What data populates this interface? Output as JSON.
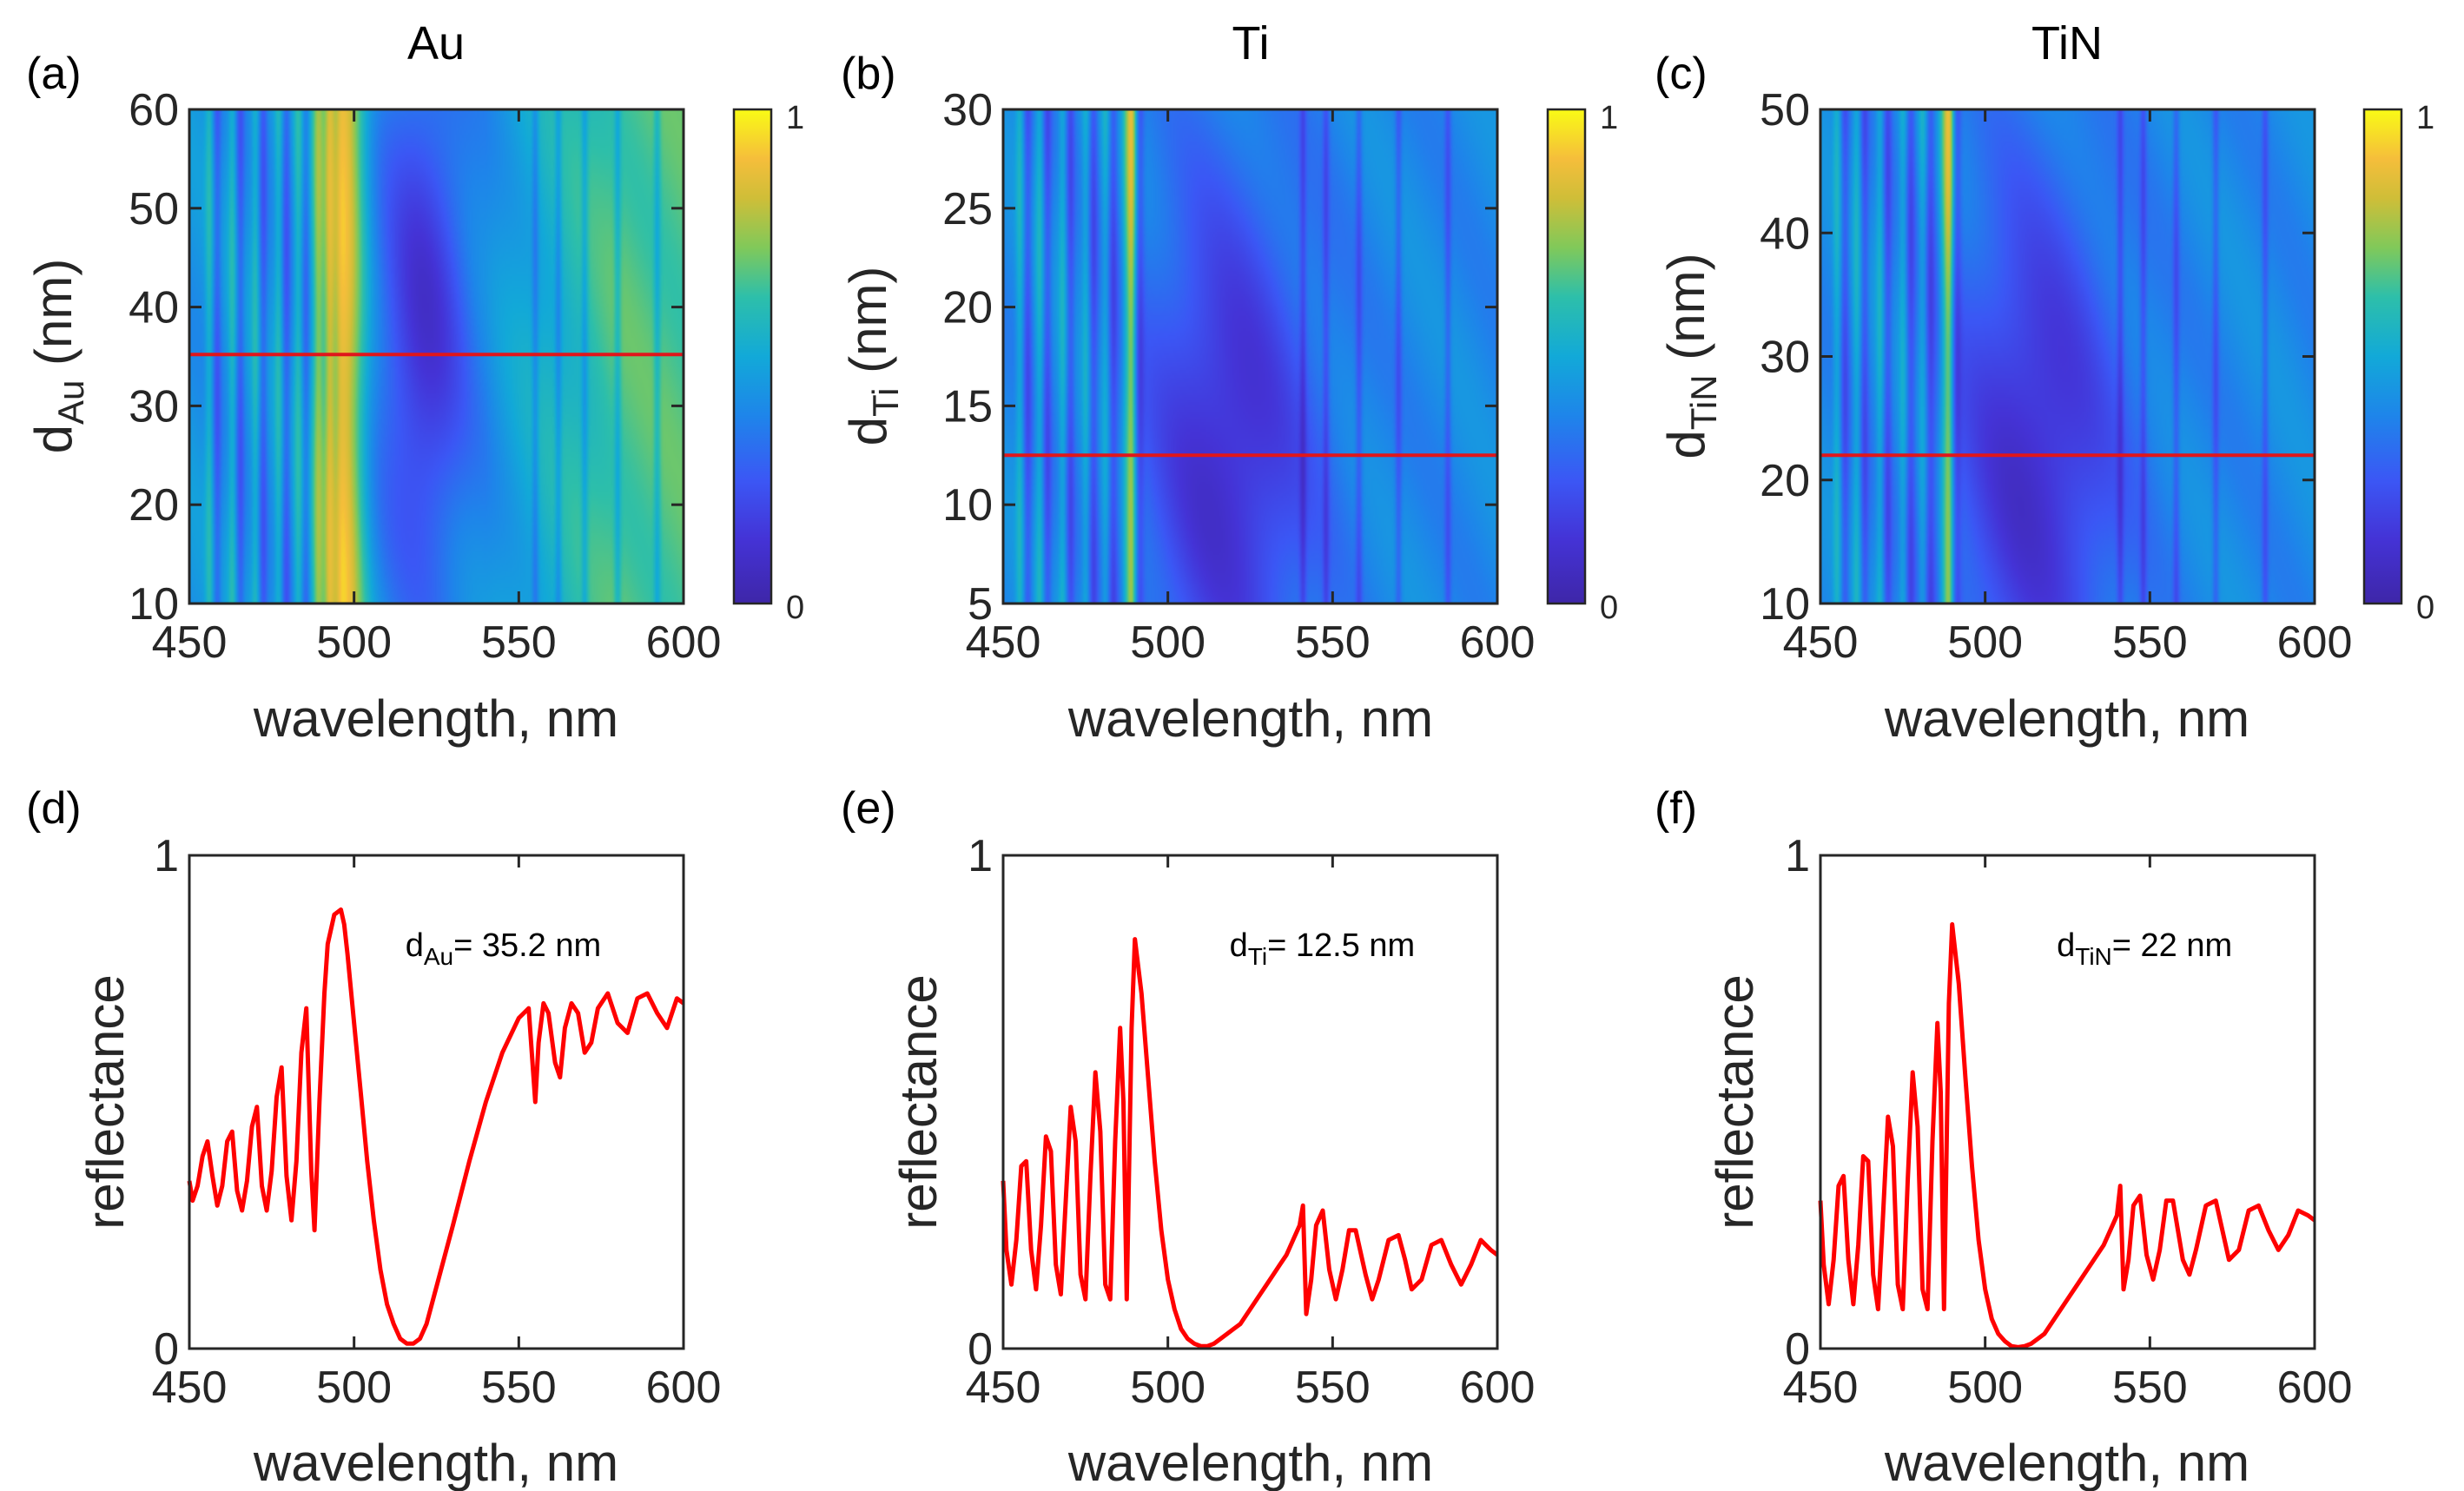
{
  "chart_data": [
    {
      "id": "a",
      "panel_label": "(a)",
      "type": "heatmap",
      "title": "Au",
      "xlabel": "wavelength, nm",
      "ylabel_main": "d",
      "ylabel_sub": "Au",
      "ylabel_unit": " (nm)",
      "xlim": [
        450,
        600
      ],
      "ylim": [
        10,
        60
      ],
      "x_ticks": [
        450,
        500,
        550,
        600
      ],
      "y_ticks": [
        10,
        20,
        30,
        40,
        50,
        60
      ],
      "colorbar": {
        "min_label": "0",
        "max_label": "1",
        "colors": [
          "#3e26a8",
          "#2f69f2",
          "#1eafd7",
          "#68cc5a",
          "#e3b93b",
          "#fcf527"
        ]
      },
      "red_line_y": 35.2,
      "features": {
        "base": 0.38,
        "fringes": [
          456,
          463,
          470,
          477,
          483,
          489,
          492
        ],
        "bright_peak": 496,
        "bright_value": 0.92,
        "right_fringes": [
          555,
          562,
          570,
          580,
          592
        ],
        "dip_center": 521,
        "dip_depth": 0.05
      }
    },
    {
      "id": "b",
      "panel_label": "(b)",
      "type": "heatmap",
      "title": "Ti",
      "xlabel": "wavelength, nm",
      "ylabel_main": "d",
      "ylabel_sub": "Ti",
      "ylabel_unit": " (nm)",
      "xlim": [
        450,
        600
      ],
      "ylim": [
        5,
        30
      ],
      "x_ticks": [
        450,
        500,
        550,
        600
      ],
      "y_ticks": [
        5,
        10,
        15,
        20,
        25,
        30
      ],
      "colorbar": {
        "min_label": "0",
        "max_label": "1"
      },
      "red_line_y": 12.5,
      "features": {
        "base": 0.35,
        "fringes": [
          455,
          461,
          468,
          475,
          481,
          487,
          489
        ],
        "bright_peak": 489,
        "bright_value": 0.85,
        "right_fringes": [
          541,
          548,
          558,
          570,
          585
        ],
        "dip_center": 518,
        "dip_depth": 0.03
      }
    },
    {
      "id": "c",
      "panel_label": "(c)",
      "type": "heatmap",
      "title": "TiN",
      "xlabel": "wavelength, nm",
      "ylabel_main": "d",
      "ylabel_sub": "TiN",
      "ylabel_unit": " (nm)",
      "xlim": [
        450,
        600
      ],
      "ylim": [
        10,
        50
      ],
      "x_ticks": [
        450,
        500,
        550,
        600
      ],
      "y_ticks": [
        10,
        20,
        30,
        40,
        50
      ],
      "colorbar": {
        "min_label": "0",
        "max_label": "1"
      },
      "red_line_y": 22,
      "features": {
        "base": 0.35,
        "fringes": [
          455,
          461,
          468,
          475,
          481,
          487,
          489
        ],
        "bright_peak": 489,
        "bright_value": 0.88,
        "right_fringes": [
          541,
          548,
          558,
          570,
          585
        ],
        "dip_center": 515,
        "dip_depth": 0.03
      }
    },
    {
      "id": "d",
      "panel_label": "(d)",
      "type": "line",
      "xlabel": "wavelength, nm",
      "ylabel": "reflectance",
      "xlim": [
        450,
        600
      ],
      "ylim": [
        0,
        1
      ],
      "x_ticks": [
        450,
        500,
        550,
        600
      ],
      "y_ticks": [
        0,
        1
      ],
      "annotation": {
        "main": "d",
        "sub": "Au",
        "rest": "= 35.2 nm",
        "x": 575,
        "y": 0.82
      },
      "series": [
        {
          "name": "Au",
          "color": "#ff0000",
          "x": [
            450,
            451,
            452.5,
            454,
            455.5,
            457,
            458.5,
            460,
            461.5,
            463,
            464.5,
            466,
            467.5,
            469,
            470.5,
            472,
            473.5,
            475,
            476.5,
            478,
            479.5,
            481,
            482.5,
            484,
            485.5,
            487,
            488,
            489.5,
            491,
            492,
            494,
            496,
            497,
            498,
            500,
            502,
            504,
            506,
            508,
            510,
            512,
            514,
            516,
            518,
            520,
            522,
            524,
            526,
            528,
            530,
            535,
            540,
            545,
            550,
            553,
            555,
            556,
            557.5,
            559,
            561,
            562.5,
            564,
            566,
            568,
            570,
            572,
            574,
            577,
            580,
            583,
            586,
            589,
            592,
            595,
            598,
            600
          ],
          "y": [
            0.34,
            0.3,
            0.33,
            0.39,
            0.42,
            0.35,
            0.29,
            0.33,
            0.42,
            0.44,
            0.32,
            0.28,
            0.34,
            0.45,
            0.49,
            0.33,
            0.28,
            0.36,
            0.51,
            0.57,
            0.35,
            0.26,
            0.38,
            0.6,
            0.69,
            0.36,
            0.24,
            0.5,
            0.72,
            0.82,
            0.88,
            0.89,
            0.86,
            0.8,
            0.66,
            0.52,
            0.38,
            0.26,
            0.16,
            0.09,
            0.05,
            0.02,
            0.01,
            0.01,
            0.02,
            0.05,
            0.1,
            0.15,
            0.2,
            0.25,
            0.38,
            0.5,
            0.6,
            0.67,
            0.69,
            0.5,
            0.62,
            0.7,
            0.68,
            0.58,
            0.55,
            0.65,
            0.7,
            0.68,
            0.6,
            0.62,
            0.69,
            0.72,
            0.66,
            0.64,
            0.71,
            0.72,
            0.68,
            0.65,
            0.71,
            0.7
          ]
        }
      ]
    },
    {
      "id": "e",
      "panel_label": "(e)",
      "type": "line",
      "xlabel": "wavelength, nm",
      "ylabel": "reflectance",
      "xlim": [
        450,
        600
      ],
      "ylim": [
        0,
        1
      ],
      "x_ticks": [
        450,
        500,
        550,
        600
      ],
      "y_ticks": [
        0,
        1
      ],
      "annotation": {
        "main": "d",
        "sub": "Ti",
        "rest": "= 12.5 nm",
        "x": 575,
        "y": 0.82
      },
      "series": [
        {
          "name": "Ti",
          "color": "#ff0000",
          "x": [
            450,
            451,
            452.5,
            454,
            455.5,
            457,
            458.5,
            460,
            461.5,
            463,
            464.5,
            466,
            467.5,
            469,
            470.5,
            472,
            473.5,
            475,
            476.5,
            478,
            479.5,
            481,
            482.5,
            484,
            485.5,
            486.5,
            487.5,
            489,
            490,
            492,
            494,
            496,
            498,
            500,
            502,
            504,
            506,
            508,
            510,
            512,
            514,
            516,
            518,
            520,
            522,
            524,
            526,
            528,
            530,
            532,
            534,
            536,
            538,
            540,
            541,
            542,
            543.5,
            545,
            547,
            549,
            551,
            553,
            555,
            557,
            560,
            562,
            564,
            567,
            570,
            572,
            574,
            577,
            580,
            583,
            586,
            589,
            592,
            595,
            598,
            600
          ],
          "y": [
            0.34,
            0.2,
            0.13,
            0.22,
            0.37,
            0.38,
            0.2,
            0.12,
            0.25,
            0.43,
            0.4,
            0.17,
            0.11,
            0.3,
            0.49,
            0.42,
            0.15,
            0.1,
            0.35,
            0.56,
            0.44,
            0.13,
            0.1,
            0.42,
            0.65,
            0.5,
            0.1,
            0.65,
            0.83,
            0.72,
            0.55,
            0.38,
            0.24,
            0.14,
            0.08,
            0.04,
            0.02,
            0.01,
            0.005,
            0.005,
            0.01,
            0.02,
            0.03,
            0.04,
            0.05,
            0.07,
            0.09,
            0.11,
            0.13,
            0.15,
            0.17,
            0.19,
            0.22,
            0.25,
            0.29,
            0.07,
            0.14,
            0.25,
            0.28,
            0.16,
            0.1,
            0.16,
            0.24,
            0.24,
            0.15,
            0.1,
            0.14,
            0.22,
            0.23,
            0.18,
            0.12,
            0.14,
            0.21,
            0.22,
            0.17,
            0.13,
            0.17,
            0.22,
            0.2,
            0.19
          ]
        }
      ]
    },
    {
      "id": "f",
      "panel_label": "(f)",
      "type": "line",
      "xlabel": "wavelength, nm",
      "ylabel": "reflectance",
      "xlim": [
        450,
        600
      ],
      "ylim": [
        0,
        1
      ],
      "x_ticks": [
        450,
        500,
        550,
        600
      ],
      "y_ticks": [
        0,
        1
      ],
      "annotation": {
        "main": "d",
        "sub": "TiN",
        "rest": "= 22 nm",
        "x": 575,
        "y": 0.82
      },
      "series": [
        {
          "name": "TiN",
          "color": "#ff0000",
          "x": [
            450,
            451,
            452.5,
            454,
            455.5,
            457,
            458.5,
            460,
            461.5,
            463,
            464.5,
            466,
            467.5,
            469,
            470.5,
            472,
            473.5,
            475,
            476.5,
            478,
            479.5,
            481,
            482.5,
            484,
            485.5,
            486.5,
            487.5,
            489,
            490,
            492,
            494,
            496,
            498,
            500,
            502,
            504,
            506,
            508,
            510,
            512,
            514,
            516,
            518,
            520,
            522,
            524,
            526,
            528,
            530,
            532,
            534,
            536,
            538,
            540,
            541,
            542,
            543.5,
            545,
            547,
            549,
            551,
            553,
            555,
            557,
            560,
            562,
            564,
            567,
            570,
            572,
            574,
            577,
            580,
            583,
            586,
            589,
            592,
            595,
            598,
            600
          ],
          "y": [
            0.3,
            0.17,
            0.09,
            0.18,
            0.33,
            0.35,
            0.18,
            0.09,
            0.21,
            0.39,
            0.38,
            0.15,
            0.08,
            0.27,
            0.47,
            0.41,
            0.13,
            0.08,
            0.34,
            0.56,
            0.45,
            0.12,
            0.08,
            0.42,
            0.66,
            0.52,
            0.08,
            0.7,
            0.86,
            0.74,
            0.55,
            0.37,
            0.22,
            0.12,
            0.06,
            0.03,
            0.015,
            0.005,
            0.003,
            0.005,
            0.01,
            0.02,
            0.03,
            0.05,
            0.07,
            0.09,
            0.11,
            0.13,
            0.15,
            0.17,
            0.19,
            0.21,
            0.24,
            0.27,
            0.33,
            0.12,
            0.18,
            0.29,
            0.31,
            0.19,
            0.14,
            0.2,
            0.3,
            0.3,
            0.18,
            0.15,
            0.2,
            0.29,
            0.3,
            0.24,
            0.18,
            0.2,
            0.28,
            0.29,
            0.24,
            0.2,
            0.23,
            0.28,
            0.27,
            0.26
          ]
        }
      ]
    }
  ]
}
